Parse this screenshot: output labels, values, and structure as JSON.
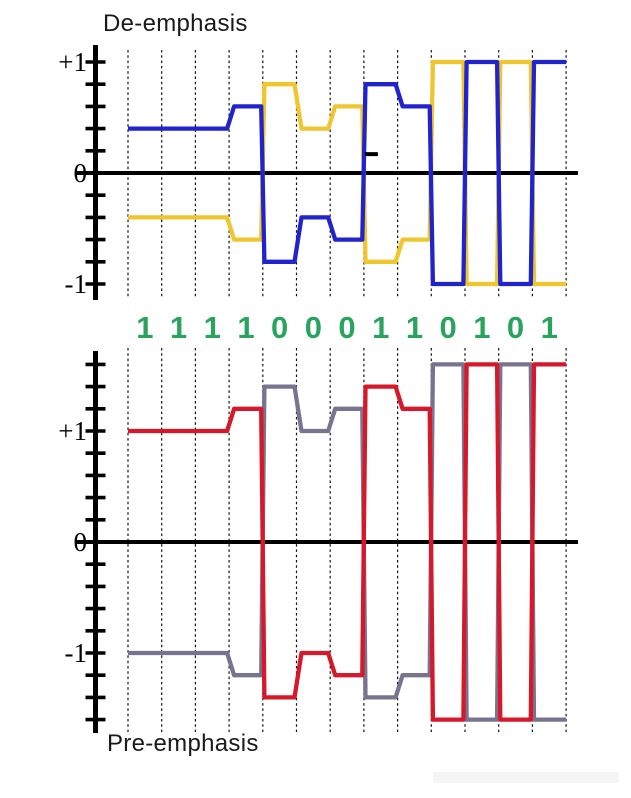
{
  "page": {
    "background": "#ffffff"
  },
  "bit_sequence": {
    "bits": [
      "1",
      "1",
      "1",
      "1",
      "0",
      "0",
      "0",
      "1",
      "1",
      "0",
      "1",
      "0",
      "1"
    ],
    "color": "#28a45f"
  },
  "watermark": {
    "visible": true,
    "text_legible": false
  },
  "chart_data": [
    {
      "type": "line",
      "subtype": "step-waveform",
      "title": "De-emphasis",
      "xlabel": "",
      "ylabel": "",
      "categories": [
        "1",
        "1",
        "1",
        "1",
        "0",
        "0",
        "0",
        "1",
        "1",
        "0",
        "1",
        "0",
        "1"
      ],
      "n_bits": 13,
      "series": [
        {
          "name": "blue-trace",
          "color": "#2123cd",
          "levels_per_bit": [
            0.4,
            0.4,
            0.4,
            0.6,
            -0.8,
            -0.4,
            -0.6,
            0.8,
            0.6,
            -1.0,
            1.0,
            -1.0,
            1.0
          ]
        },
        {
          "name": "yellow-trace",
          "color": "#f0c62f",
          "levels_per_bit": [
            -0.4,
            -0.4,
            -0.4,
            -0.6,
            0.8,
            0.4,
            0.6,
            -0.8,
            -0.6,
            1.0,
            -1.0,
            1.0,
            -1.0
          ]
        }
      ],
      "ytick_labels": [
        {
          "label": "+1",
          "value": 1
        },
        {
          "label": "0",
          "value": 0
        },
        {
          "label": "-1",
          "value": -1
        }
      ],
      "ytick_step": 0.2,
      "ytick_range": [
        -1.0,
        1.0
      ],
      "ylim": [
        -1.1,
        1.1
      ],
      "grid": "vertical-dotted",
      "legend": "none",
      "annotations": [
        {
          "type": "dash-mark",
          "at_bit_boundary": 7,
          "level": 0.17
        }
      ]
    },
    {
      "type": "line",
      "subtype": "step-waveform",
      "title": "Pre-emphasis",
      "xlabel": "",
      "ylabel": "",
      "categories": [
        "1",
        "1",
        "1",
        "1",
        "0",
        "0",
        "0",
        "1",
        "1",
        "0",
        "1",
        "0",
        "1"
      ],
      "n_bits": 13,
      "series": [
        {
          "name": "red-trace",
          "color": "#d5182a",
          "levels_per_bit": [
            1.0,
            1.0,
            1.0,
            1.2,
            -1.4,
            -1.0,
            -1.2,
            1.4,
            1.2,
            -1.6,
            1.6,
            -1.6,
            1.6
          ]
        },
        {
          "name": "gray-trace",
          "color": "#7a7390",
          "levels_per_bit": [
            -1.0,
            -1.0,
            -1.0,
            -1.2,
            1.4,
            1.0,
            1.2,
            -1.4,
            -1.2,
            1.6,
            -1.6,
            1.6,
            -1.6
          ]
        }
      ],
      "ytick_labels": [
        {
          "label": "+1",
          "value": 1
        },
        {
          "label": "0",
          "value": 0
        },
        {
          "label": "-1",
          "value": -1
        }
      ],
      "ytick_step": 0.2,
      "ytick_range": [
        -1.6,
        1.6
      ],
      "ylim": [
        -1.75,
        1.75
      ],
      "grid": "vertical-dotted",
      "legend": "none",
      "annotations": []
    }
  ]
}
